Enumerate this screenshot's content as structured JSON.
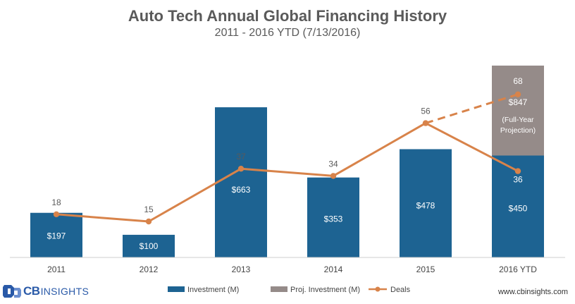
{
  "header": {
    "title": "Auto Tech Annual Global Financing History",
    "subtitle": "2011 - 2016 YTD (7/13/2016)"
  },
  "chart_data": {
    "type": "bar",
    "title": "Auto Tech Annual Global Financing History",
    "subtitle": "2011 - 2016 YTD (7/13/2016)",
    "categories": [
      "2011",
      "2012",
      "2013",
      "2014",
      "2015",
      "2016 YTD"
    ],
    "stacked": true,
    "series": [
      {
        "name": "Investment (M)",
        "type": "bar",
        "color": "#1d6392",
        "values": [
          197,
          100,
          663,
          353,
          478,
          450
        ],
        "labels": [
          "$197",
          "$100",
          "$663",
          "$353",
          "$478",
          "$450"
        ]
      },
      {
        "name": "Proj. Investment (M)",
        "type": "bar",
        "color": "#958b89",
        "values": [
          0,
          0,
          0,
          0,
          0,
          397
        ],
        "labels": [
          "",
          "",
          "",
          "",
          "",
          "$847 (Full-Year Projection)"
        ]
      },
      {
        "name": "Deals",
        "type": "line",
        "color": "#d8834a",
        "values": [
          18,
          15,
          37,
          34,
          56,
          36
        ],
        "labels": [
          "18",
          "15",
          "37",
          "34",
          "56",
          "36"
        ]
      },
      {
        "name": "Projected Deals",
        "type": "line-dashed",
        "color": "#d8834a",
        "points": [
          {
            "x": "2015",
            "y": 56
          },
          {
            "x": "2016 YTD",
            "y": 68
          }
        ],
        "label": "68"
      }
    ],
    "projection_label_lines": [
      "$847",
      "(Full-Year",
      "Projection)"
    ],
    "left_axis": {
      "min": 0,
      "max": 847
    },
    "right_axis": {
      "min": 0,
      "max": 80
    },
    "legend": {
      "position": "bottom",
      "items": [
        {
          "label": "Investment (M)",
          "symbol": "bar",
          "color": "#1d6392"
        },
        {
          "label": "Proj. Investment (M)",
          "symbol": "bar",
          "color": "#958b89"
        },
        {
          "label": "Deals",
          "symbol": "line-marker",
          "color": "#d8834a"
        }
      ]
    },
    "grid": false
  },
  "footer": {
    "logo_cb": "CB",
    "logo_insights": "INSIGHTS",
    "website": "www.cbinsights.com"
  },
  "colors": {
    "investment": "#1d6392",
    "projection": "#958b89",
    "deals": "#d8834a",
    "label_gray": "#5a5a5a"
  }
}
